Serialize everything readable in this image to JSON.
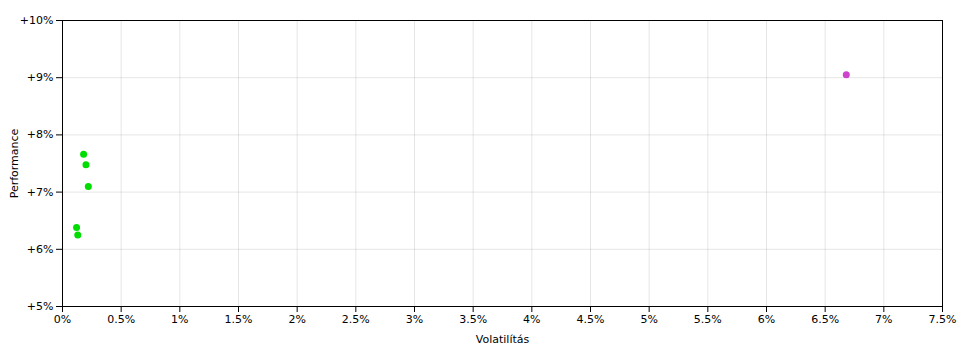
{
  "chart_data": {
    "type": "scatter",
    "xlabel": "Volatilítás",
    "ylabel": "Performance",
    "xlim": [
      0,
      0.075
    ],
    "ylim": [
      0.05,
      0.1
    ],
    "xticks": [
      {
        "value": 0,
        "label": "0%"
      },
      {
        "value": 0.005,
        "label": "0.5%"
      },
      {
        "value": 0.01,
        "label": "1%"
      },
      {
        "value": 0.015,
        "label": "1.5%"
      },
      {
        "value": 0.02,
        "label": "2%"
      },
      {
        "value": 0.025,
        "label": "2.5%"
      },
      {
        "value": 0.03,
        "label": "3%"
      },
      {
        "value": 0.035,
        "label": "3.5%"
      },
      {
        "value": 0.04,
        "label": "4%"
      },
      {
        "value": 0.045,
        "label": "4.5%"
      },
      {
        "value": 0.05,
        "label": "5%"
      },
      {
        "value": 0.055,
        "label": "5.5%"
      },
      {
        "value": 0.06,
        "label": "6%"
      },
      {
        "value": 0.065,
        "label": "6.5%"
      },
      {
        "value": 0.07,
        "label": "7%"
      },
      {
        "value": 0.075,
        "label": "7.5%"
      }
    ],
    "yticks": [
      {
        "value": 0.05,
        "label": "+5%"
      },
      {
        "value": 0.06,
        "label": "+6%"
      },
      {
        "value": 0.07,
        "label": "+7%"
      },
      {
        "value": 0.08,
        "label": "+8%"
      },
      {
        "value": 0.09,
        "label": "+9%"
      },
      {
        "value": 0.1,
        "label": "+10%"
      }
    ],
    "grid": true,
    "series": [
      {
        "color": "#00dd00",
        "x": [
          0.0018,
          0.002,
          0.0022,
          0.0012,
          0.0013
        ],
        "values": [
          0.0766,
          0.0748,
          0.071,
          0.0638,
          0.0625
        ]
      },
      {
        "color": "#cc44cc",
        "x": [
          0.0668
        ],
        "values": [
          0.0905
        ]
      }
    ]
  }
}
